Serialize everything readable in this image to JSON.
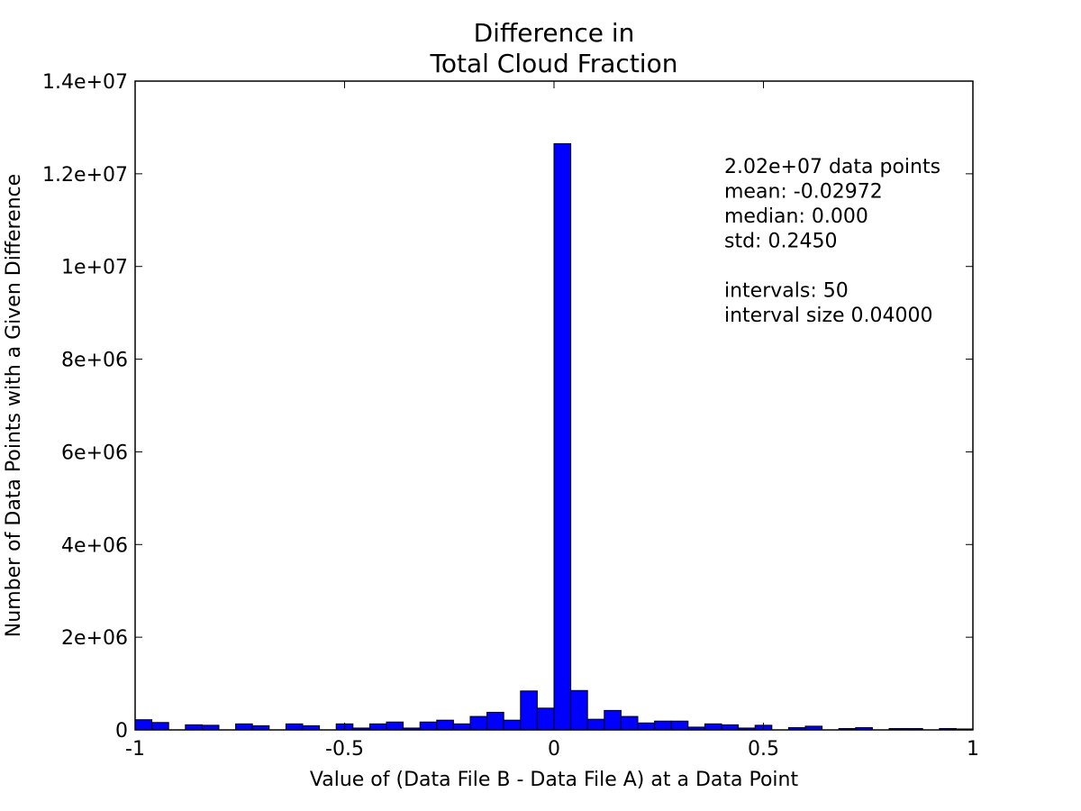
{
  "chart_data": {
    "type": "bar",
    "title_lines": [
      "Difference in",
      "Total Cloud Fraction"
    ],
    "xlabel": "Value of (Data File B - Data File A) at a Data Point",
    "ylabel": "Number of Data Points with a Given Difference",
    "xlim": [
      -1,
      1
    ],
    "ylim": [
      0,
      14000000
    ],
    "x_ticks": [
      {
        "value": -1,
        "label": "-1"
      },
      {
        "value": -0.5,
        "label": "-0.5"
      },
      {
        "value": 0,
        "label": "0"
      },
      {
        "value": 0.5,
        "label": "0.5"
      },
      {
        "value": 1,
        "label": "1"
      }
    ],
    "y_ticks": [
      {
        "value": 0,
        "label": "0"
      },
      {
        "value": 2000000,
        "label": "2e+06"
      },
      {
        "value": 4000000,
        "label": "4e+06"
      },
      {
        "value": 6000000,
        "label": "6e+06"
      },
      {
        "value": 8000000,
        "label": "8e+06"
      },
      {
        "value": 10000000,
        "label": "1e+07"
      },
      {
        "value": 12000000,
        "label": "1.2e+07"
      },
      {
        "value": 14000000,
        "label": "1.4e+07"
      }
    ],
    "grid": false,
    "bar_color": "#0000ff",
    "bin_start": -1,
    "bin_width": 0.04,
    "counts": [
      220000,
      160000,
      0,
      110000,
      100000,
      0,
      130000,
      90000,
      0,
      130000,
      90000,
      0,
      130000,
      40000,
      130000,
      170000,
      40000,
      170000,
      210000,
      130000,
      290000,
      380000,
      210000,
      840000,
      470000,
      12650000,
      850000,
      230000,
      420000,
      290000,
      150000,
      190000,
      190000,
      60000,
      130000,
      110000,
      40000,
      100000,
      0,
      50000,
      80000,
      0,
      30000,
      50000,
      0,
      30000,
      30000,
      0,
      30000,
      20000
    ],
    "annotations": [
      "2.02e+07 data points",
      "mean: -0.02972",
      "median: 0.000",
      "std: 0.2450",
      "",
      "intervals: 50",
      "interval size 0.04000"
    ]
  }
}
